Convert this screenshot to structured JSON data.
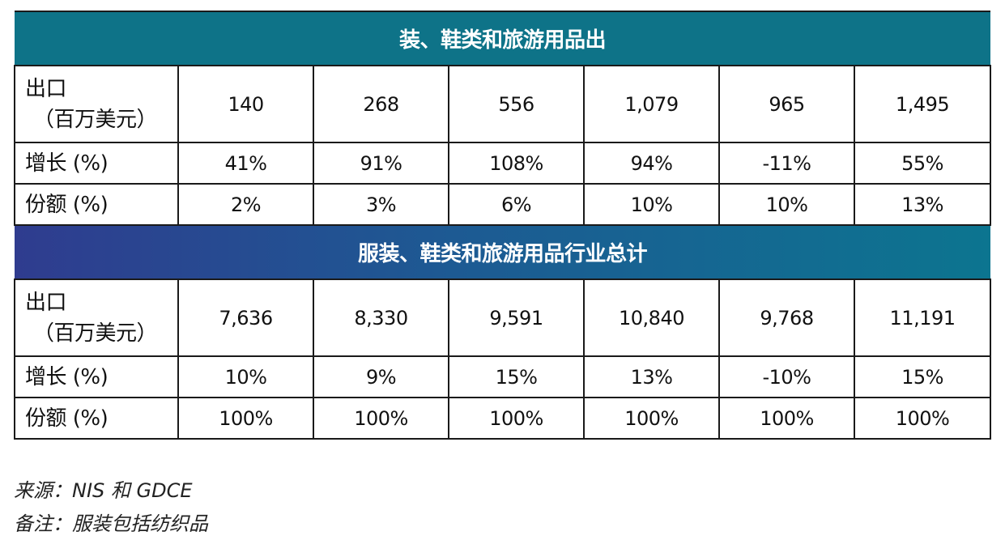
{
  "section1": {
    "title": "装、鞋类和旅游用品出",
    "rows": [
      {
        "label_line1": "出口",
        "label_line2": "（百万美元）",
        "values": [
          "140",
          "268",
          "556",
          "1,079",
          "965",
          "1,495"
        ]
      },
      {
        "label_line1": "增长 (%)",
        "values": [
          "41%",
          "91%",
          "108%",
          "94%",
          "-11%",
          "55%"
        ]
      },
      {
        "label_line1": "份额 (%)",
        "values": [
          "2%",
          "3%",
          "6%",
          "10%",
          "10%",
          "13%"
        ]
      }
    ]
  },
  "section2": {
    "title": "服装、鞋类和旅游用品行业总计",
    "rows": [
      {
        "label_line1": "出口",
        "label_line2": "（百万美元）",
        "values": [
          "7,636",
          "8,330",
          "9,591",
          "10,840",
          "9,768",
          "11,191"
        ]
      },
      {
        "label_line1": "增长 (%)",
        "values": [
          "10%",
          "9%",
          "15%",
          "13%",
          "-10%",
          "15%"
        ]
      },
      {
        "label_line1": "份额 (%)",
        "values": [
          "100%",
          "100%",
          "100%",
          "100%",
          "100%",
          "100%"
        ]
      }
    ]
  },
  "footnotes": {
    "source": "来源：NIS 和 GDCE",
    "note": "备注：服装包括纺织品"
  },
  "colors": {
    "section1_header": "#0e7388",
    "section2_header_start": "#2f3c8f",
    "section2_header_end": "#0c7590",
    "border": "#1a1a1a"
  }
}
